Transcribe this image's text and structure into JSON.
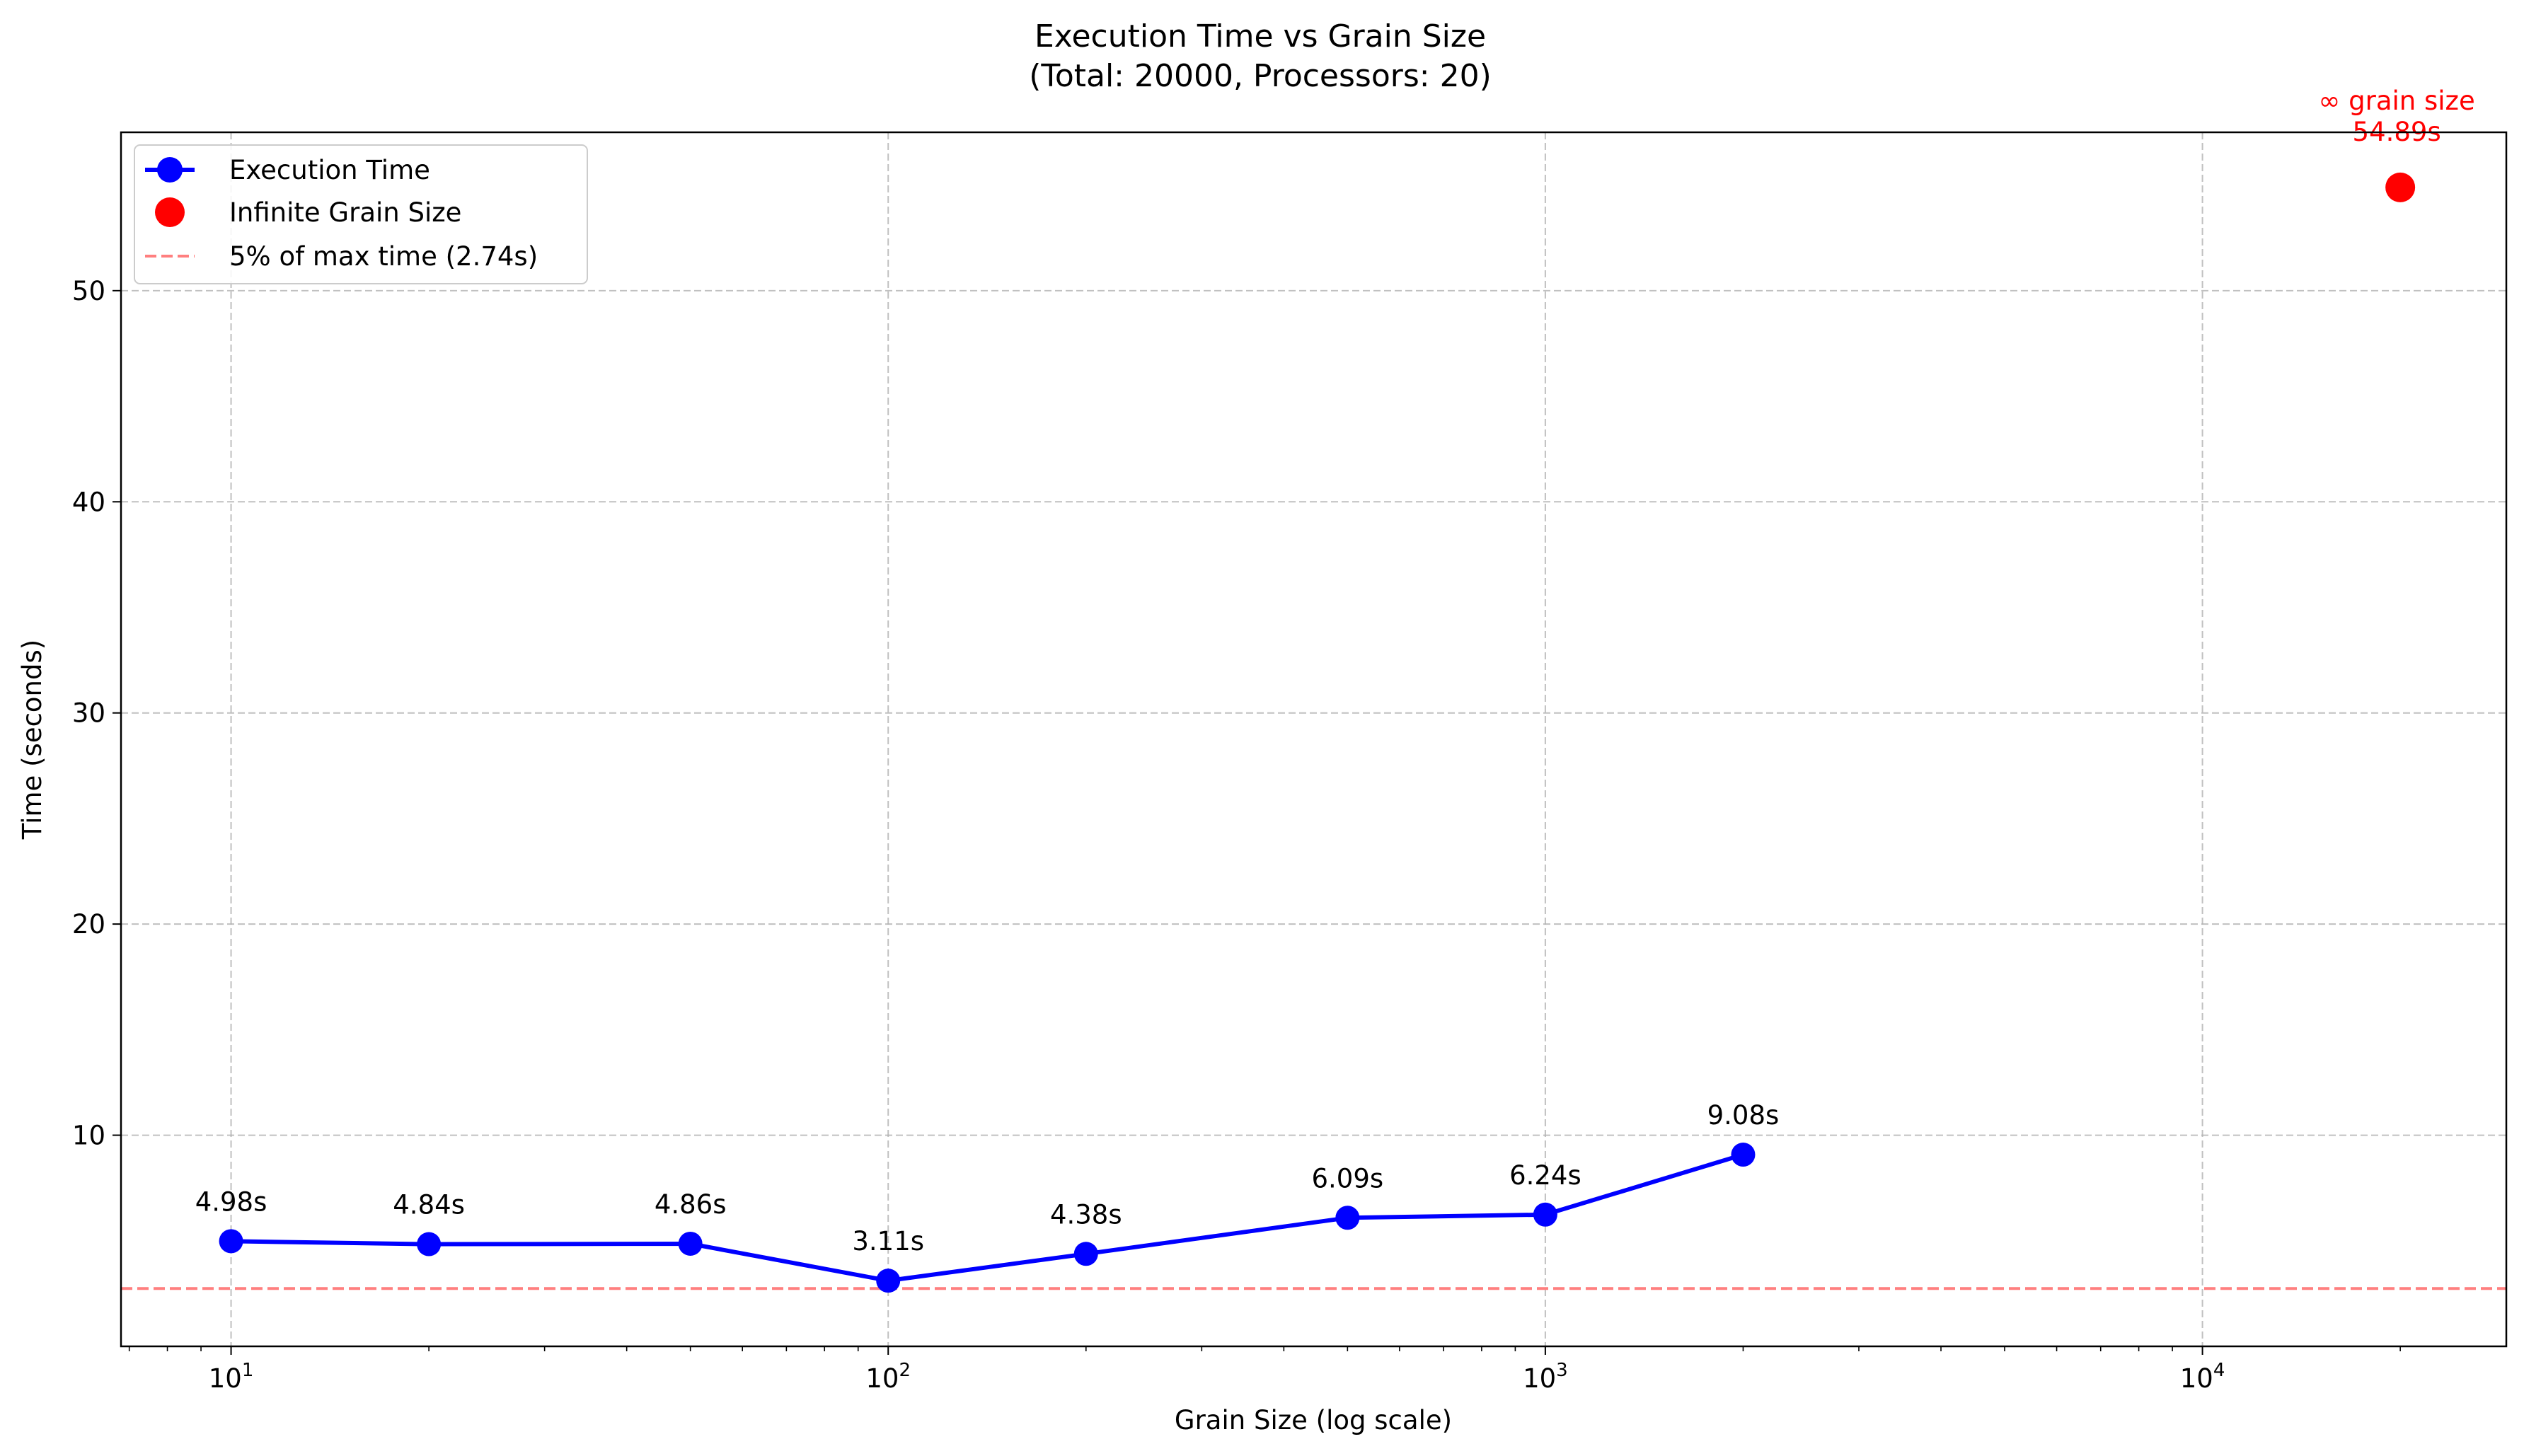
{
  "chart_data": {
    "type": "line",
    "title": "Execution Time vs Grain Size",
    "subtitle": "(Total: 20000, Processors: 20)",
    "xlabel": "Grain Size (log scale)",
    "ylabel": "Time (seconds)",
    "xscale": "log",
    "xlim": [
      6.8,
      29000
    ],
    "ylim": [
      0,
      57.5
    ],
    "x_ticks": [
      {
        "value": 10,
        "base": "10",
        "exp": "1"
      },
      {
        "value": 100,
        "base": "10",
        "exp": "2"
      },
      {
        "value": 1000,
        "base": "10",
        "exp": "3"
      },
      {
        "value": 10000,
        "base": "10",
        "exp": "4"
      }
    ],
    "y_ticks": [
      10,
      20,
      30,
      40,
      50
    ],
    "grid": true,
    "legend_position": "top-left",
    "legend": [
      {
        "label": "Execution Time",
        "kind": "line-marker",
        "color": "#0000ff"
      },
      {
        "label": "Infinite Grain Size",
        "kind": "marker",
        "color": "#ff0000"
      },
      {
        "label": "5% of max time (2.74s)",
        "kind": "dashed",
        "color": "#ff7f7f"
      }
    ],
    "series": [
      {
        "name": "Execution Time",
        "color": "#0000ff",
        "x": [
          10,
          20,
          50,
          100,
          200,
          500,
          1000,
          2000
        ],
        "y": [
          4.98,
          4.84,
          4.86,
          3.11,
          4.38,
          6.09,
          6.24,
          9.08
        ],
        "labels": [
          "4.98s",
          "4.84s",
          "4.86s",
          "3.11s",
          "4.38s",
          "6.09s",
          "6.24s",
          "9.08s"
        ]
      },
      {
        "name": "Infinite Grain Size",
        "color": "#ff0000",
        "x": [
          20000
        ],
        "y": [
          54.89
        ],
        "labels": [
          "∞ grain size",
          "54.89s"
        ]
      }
    ],
    "reference_line": {
      "name": "5% of max time (2.74s)",
      "y": 2.74,
      "color": "#ff7f7f",
      "style": "dashed"
    }
  }
}
